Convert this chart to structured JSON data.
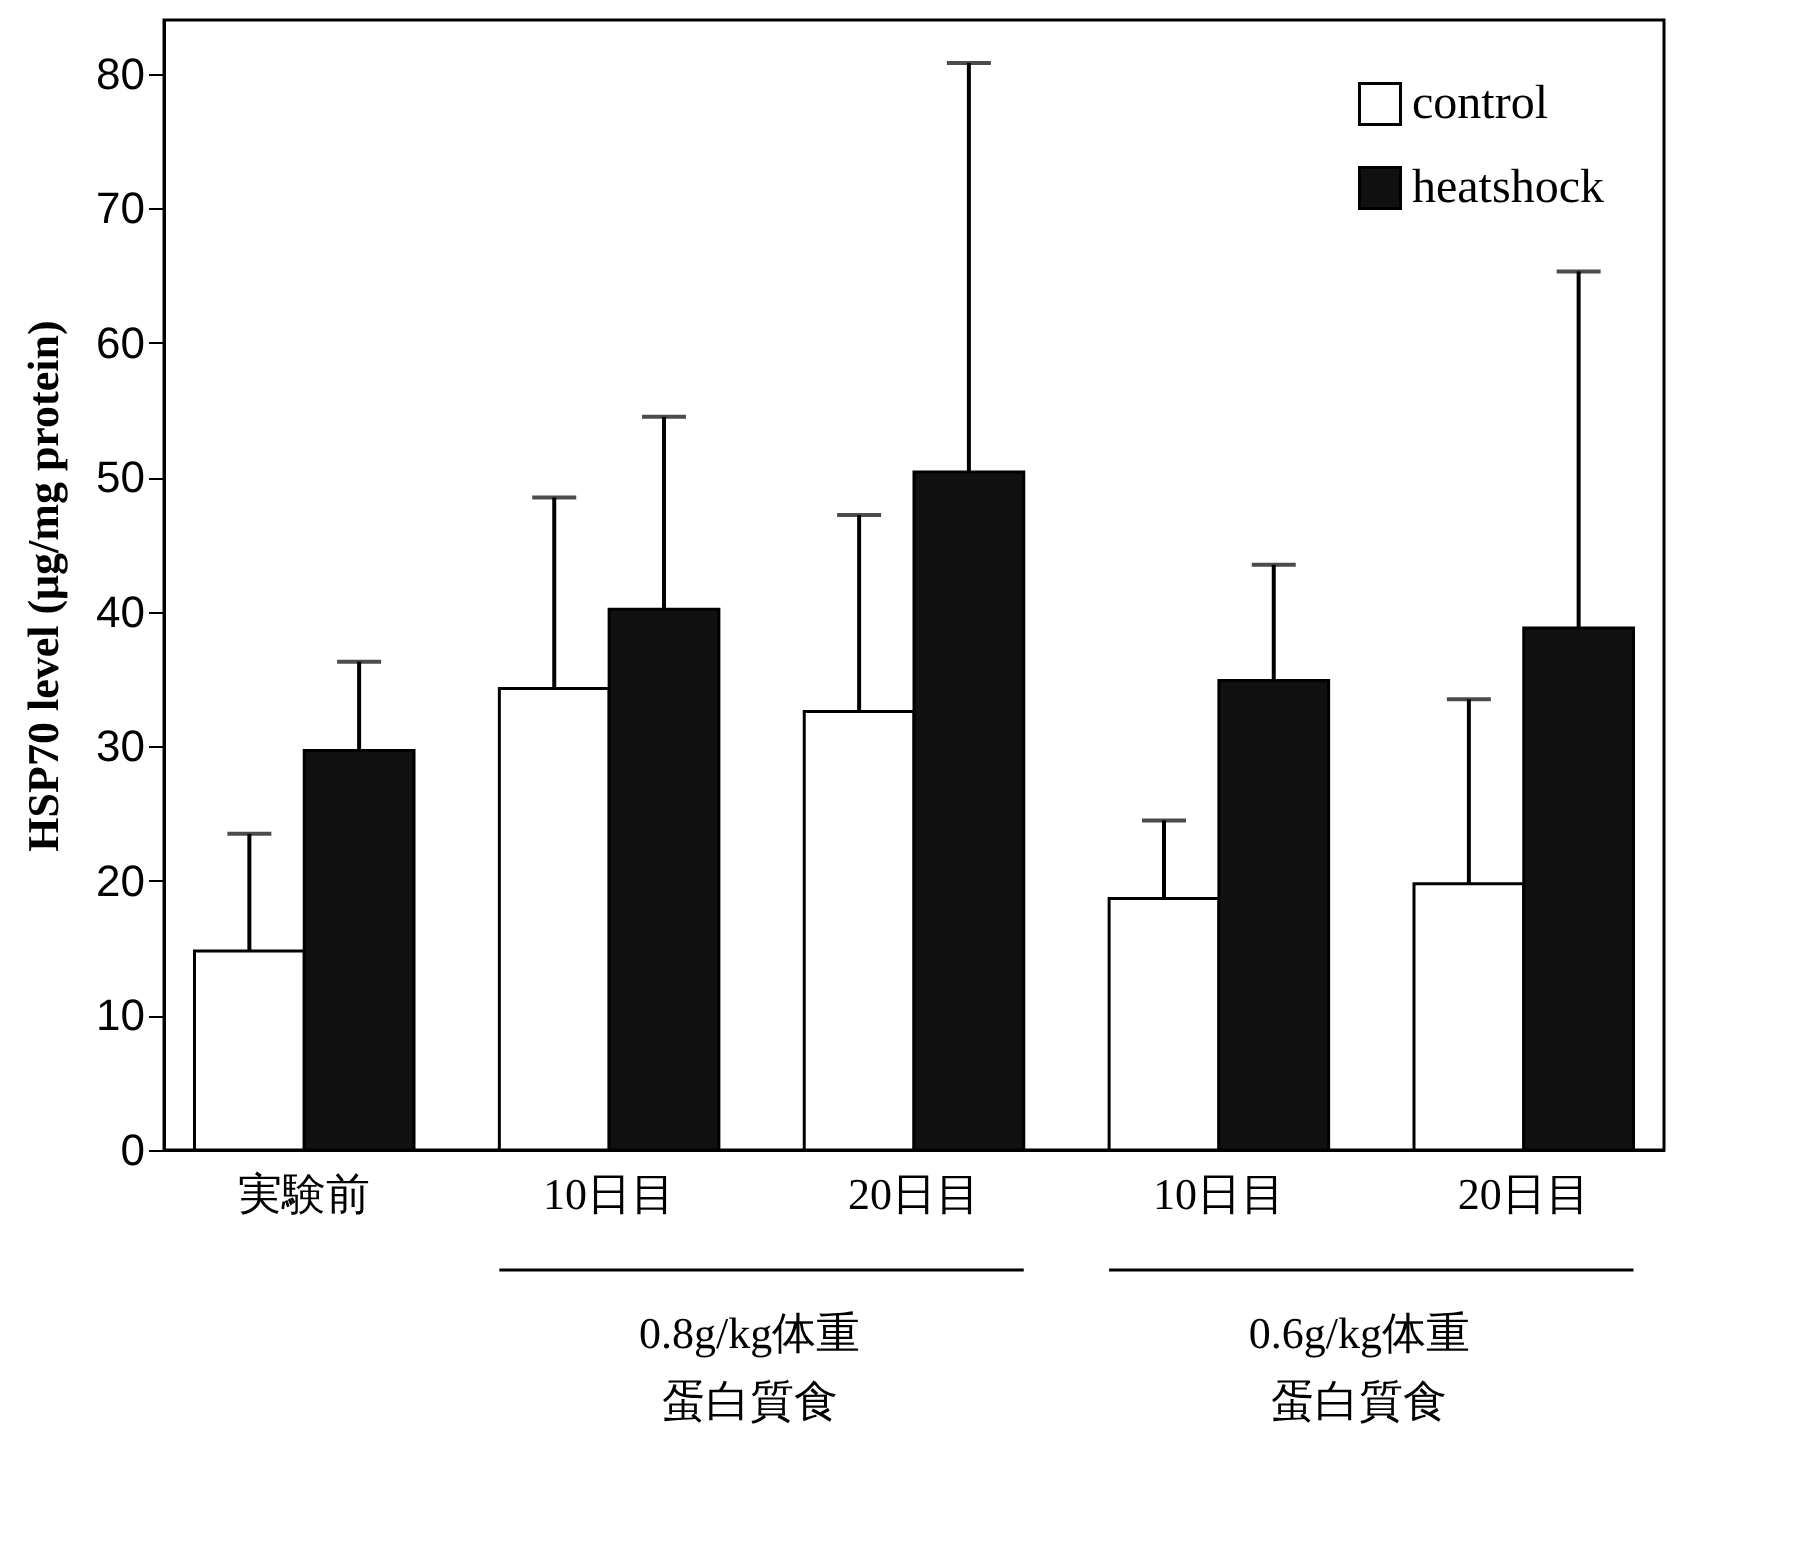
{
  "chart_data": {
    "type": "bar",
    "ylabel": "HSP70 level (μg/mg protein)",
    "categories": [
      "実験前",
      "10日目",
      "20日目",
      "10日目",
      "20日目"
    ],
    "series": [
      {
        "name": "control",
        "color": "#ffffff",
        "values": [
          14.8,
          34.3,
          32.6,
          18.7,
          19.8
        ],
        "errors": [
          [
            14.8,
            23.5
          ],
          [
            34.3,
            48.5
          ],
          [
            32.6,
            47.2
          ],
          [
            18.7,
            24.5
          ],
          [
            19.8,
            33.5
          ]
        ]
      },
      {
        "name": "heatshock",
        "color": "#111111",
        "values": [
          29.7,
          40.2,
          50.4,
          34.9,
          38.8
        ],
        "errors": [
          [
            29.7,
            36.3
          ],
          [
            40.2,
            54.5
          ],
          [
            50.4,
            80.8
          ],
          [
            34.9,
            43.5
          ],
          [
            38.8,
            65.3
          ]
        ]
      }
    ],
    "ylim": [
      0,
      84
    ],
    "yticks": [
      0,
      10,
      20,
      30,
      40,
      50,
      60,
      70,
      80
    ],
    "grid": false,
    "legend": "top right",
    "annotations": [
      "0.8g/kg体重",
      "蛋白質食",
      "0.6g/kg体重",
      "蛋白質食"
    ]
  }
}
